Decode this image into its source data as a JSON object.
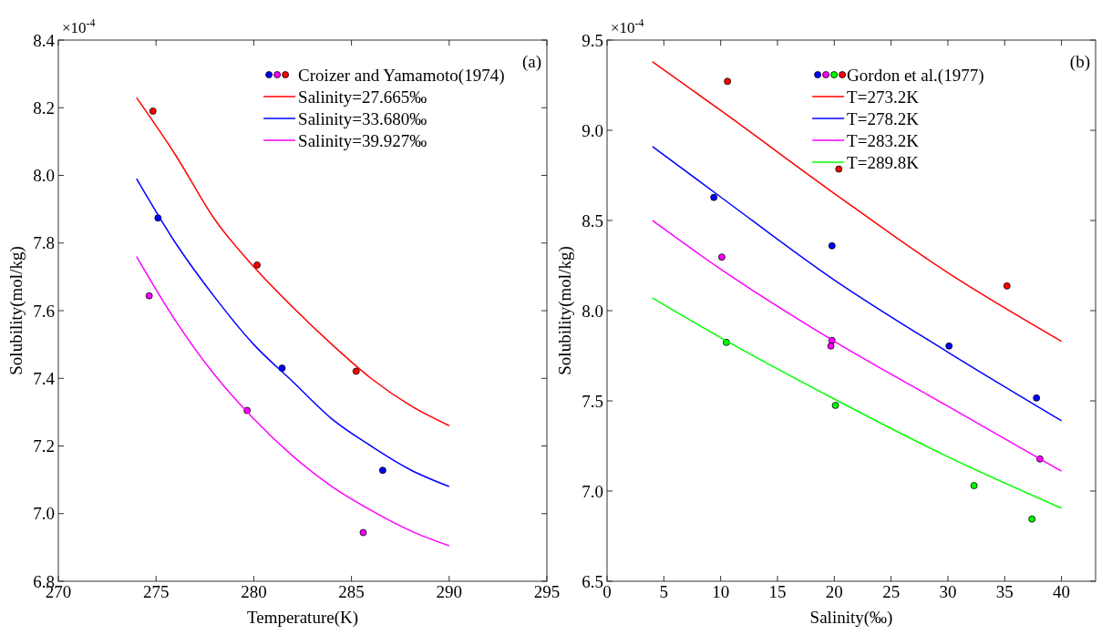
{
  "chart_data": [
    {
      "type": "line",
      "xlabel": "Temperature(K)",
      "ylabel": "Solubility(mol/kg)",
      "annotations": [
        "×10$^{-4}$",
        "(a)"
      ],
      "xlim": [
        270,
        295
      ],
      "xticks": [
        270,
        275,
        280,
        285,
        290,
        295
      ],
      "ylim": [
        6.8,
        8.4
      ],
      "yticks": [
        {
          "value": 6.8,
          "label": "6.8"
        },
        {
          "value": 7,
          "label": "7.0"
        },
        {
          "value": 7.2,
          "label": "7.2"
        },
        {
          "value": 7.4,
          "label": "7.4"
        },
        {
          "value": 7.6,
          "label": "7.6"
        },
        {
          "value": 7.8,
          "label": "7.8"
        },
        {
          "value": 8,
          "label": "8.0"
        },
        {
          "value": 8.2,
          "label": "8.2"
        },
        {
          "value": 8.4,
          "label": "8.4"
        }
      ],
      "grid": false,
      "legend": "top right",
      "series": [
        {
          "type": "scatter",
          "name": "Croizer and Yamamoto(1974)",
          "color": "#ff0000",
          "marker": "circle",
          "x": [
            274.84,
            280.17,
            285.24
          ],
          "values": [
            8.19,
            7.735,
            7.421
          ]
        },
        {
          "type": "scatter",
          "color": "#0000ff",
          "marker": "circle",
          "x": [
            275.1,
            281.45,
            286.6
          ],
          "values": [
            7.874,
            7.43,
            7.128
          ]
        },
        {
          "type": "scatter",
          "color": "#ff00ff",
          "marker": "circle",
          "x": [
            274.65,
            279.66,
            285.6
          ],
          "values": [
            7.644,
            7.305,
            6.944
          ]
        },
        {
          "name": "Salinity=27.665‰",
          "color": "#ff0000",
          "marker": "none",
          "x": [
            274,
            276,
            278,
            280,
            282,
            284,
            286,
            288,
            290
          ],
          "values": [
            8.23,
            8.06,
            7.87,
            7.73,
            7.61,
            7.5,
            7.4,
            7.32,
            7.26
          ]
        },
        {
          "name": "Salinity=33.680‰",
          "color": "#0000ff",
          "marker": "none",
          "x": [
            274,
            276,
            278,
            280,
            282,
            284,
            286,
            288,
            290
          ],
          "values": [
            7.99,
            7.8,
            7.64,
            7.5,
            7.39,
            7.28,
            7.2,
            7.13,
            7.08
          ]
        },
        {
          "name": "Salinity=39.927‰",
          "color": "#ff00ff",
          "marker": "none",
          "x": [
            274,
            276,
            278,
            280,
            282,
            284,
            286,
            288,
            290
          ],
          "values": [
            7.76,
            7.57,
            7.41,
            7.28,
            7.17,
            7.08,
            7.01,
            6.95,
            6.905
          ]
        }
      ]
    },
    {
      "type": "line",
      "xlabel": "Salinity(‰)",
      "ylabel": "Solubility(mol/kg)",
      "annotations": [
        "×10$^{-4}$",
        "(b)"
      ],
      "xlim": [
        0,
        43
      ],
      "xticks": [
        0,
        5,
        10,
        15,
        20,
        25,
        30,
        35,
        40
      ],
      "ylim": [
        6.5,
        9.5
      ],
      "yticks": [
        {
          "value": 6.5,
          "label": "6.5"
        },
        {
          "value": 7,
          "label": "7.0"
        },
        {
          "value": 7.5,
          "label": "7.5"
        },
        {
          "value": 8,
          "label": "8.0"
        },
        {
          "value": 8.5,
          "label": "8.5"
        },
        {
          "value": 9,
          "label": "9.0"
        },
        {
          "value": 9.5,
          "label": "9.5"
        }
      ],
      "grid": false,
      "legend": "top right",
      "series": [
        {
          "type": "scatter",
          "name": "Gordon et al.(1977)",
          "color": "#ff0000",
          "marker": "circle",
          "x": [
            10.6,
            20.4,
            35.2
          ],
          "values": [
            9.271,
            8.785,
            8.137
          ]
        },
        {
          "type": "scatter",
          "color": "#0000ff",
          "marker": "circle",
          "x": [
            9.4,
            19.8,
            30.1,
            37.8
          ],
          "values": [
            8.628,
            8.36,
            7.804,
            7.516
          ]
        },
        {
          "type": "scatter",
          "color": "#ff00ff",
          "marker": "circle",
          "x": [
            10.1,
            19.8,
            19.7,
            38.1
          ],
          "values": [
            8.297,
            7.835,
            7.804,
            7.178
          ]
        },
        {
          "type": "scatter",
          "color": "#00ff00",
          "marker": "circle",
          "x": [
            10.5,
            20.1,
            32.3,
            37.4
          ],
          "values": [
            7.824,
            7.475,
            7.03,
            6.845
          ]
        },
        {
          "name": "T=273.2K",
          "color": "#ff0000",
          "marker": "none",
          "x": [
            4,
            10,
            20,
            30,
            40
          ],
          "values": [
            9.38,
            9.11,
            8.65,
            8.21,
            7.83
          ]
        },
        {
          "name": "T=278.2K",
          "color": "#0000ff",
          "marker": "none",
          "x": [
            4,
            10,
            20,
            30,
            40
          ],
          "values": [
            8.91,
            8.63,
            8.17,
            7.77,
            7.39
          ]
        },
        {
          "name": "T=283.2K",
          "color": "#ff00ff",
          "marker": "none",
          "x": [
            4,
            10,
            20,
            30,
            40
          ],
          "values": [
            8.5,
            8.23,
            7.83,
            7.47,
            7.11
          ]
        },
        {
          "name": "T=289.8K",
          "color": "#00ff00",
          "marker": "none",
          "x": [
            4,
            10,
            20,
            30,
            40
          ],
          "values": [
            8.07,
            7.85,
            7.51,
            7.19,
            6.905
          ]
        }
      ]
    }
  ]
}
